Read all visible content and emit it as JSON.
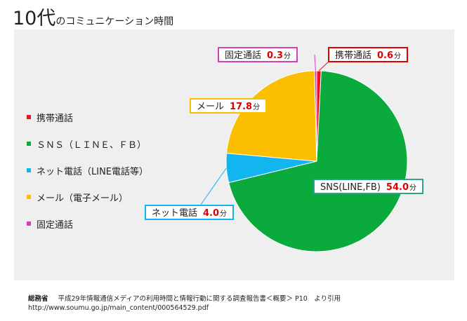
{
  "title": {
    "main": "10代",
    "sub": "のコミュニケーション時間"
  },
  "chart_data": {
    "type": "pie",
    "unit": "分",
    "slices": [
      {
        "name": "携帯通話",
        "value": 0.6,
        "color": "#e8141e"
      },
      {
        "name": "SNS（LINE、FB）",
        "value": 54.0,
        "color": "#0aaa3c"
      },
      {
        "name": "ネット電話（LINE電話等）",
        "value": 4.0,
        "color": "#12b5f0"
      },
      {
        "name": "メール（電子メール）",
        "value": 17.8,
        "color": "#fbbe00"
      },
      {
        "name": "固定通話",
        "value": 0.3,
        "color": "#d63fb5"
      }
    ],
    "legend": {
      "items": [
        {
          "label": "携帯通話",
          "color": "#e8141e"
        },
        {
          "label": "ＳＮＳ（ＬＩＮＥ、ＦＢ）",
          "color": "#0aaa3c"
        },
        {
          "label": "ネット電話（LINE電話等）",
          "color": "#12b5f0"
        },
        {
          "label": "メール（電子メール）",
          "color": "#fbbe00"
        },
        {
          "label": "固定通話",
          "color": "#d63fb5"
        }
      ]
    },
    "labels": [
      {
        "text": "携帯通話",
        "value": "0.6",
        "border": "#e00000"
      },
      {
        "text": "SNS(LINE,FB)",
        "value": "54.0",
        "border": "#2aa48a"
      },
      {
        "text": "ネット電話",
        "value": "4.0",
        "border": "#12b5f0"
      },
      {
        "text": "メール",
        "value": "17.8",
        "border": "#fbbe00"
      },
      {
        "text": "固定通話",
        "value": "0.3",
        "border": "#d63fb5"
      }
    ]
  },
  "source": {
    "org": "総務省",
    "text": "平成29年情報通信メディアの利用時間と情報行動に関する調査報告書＜概要＞ P10　より引用",
    "url": "http://www.soumu.go.jp/main_content/000564529.pdf"
  }
}
